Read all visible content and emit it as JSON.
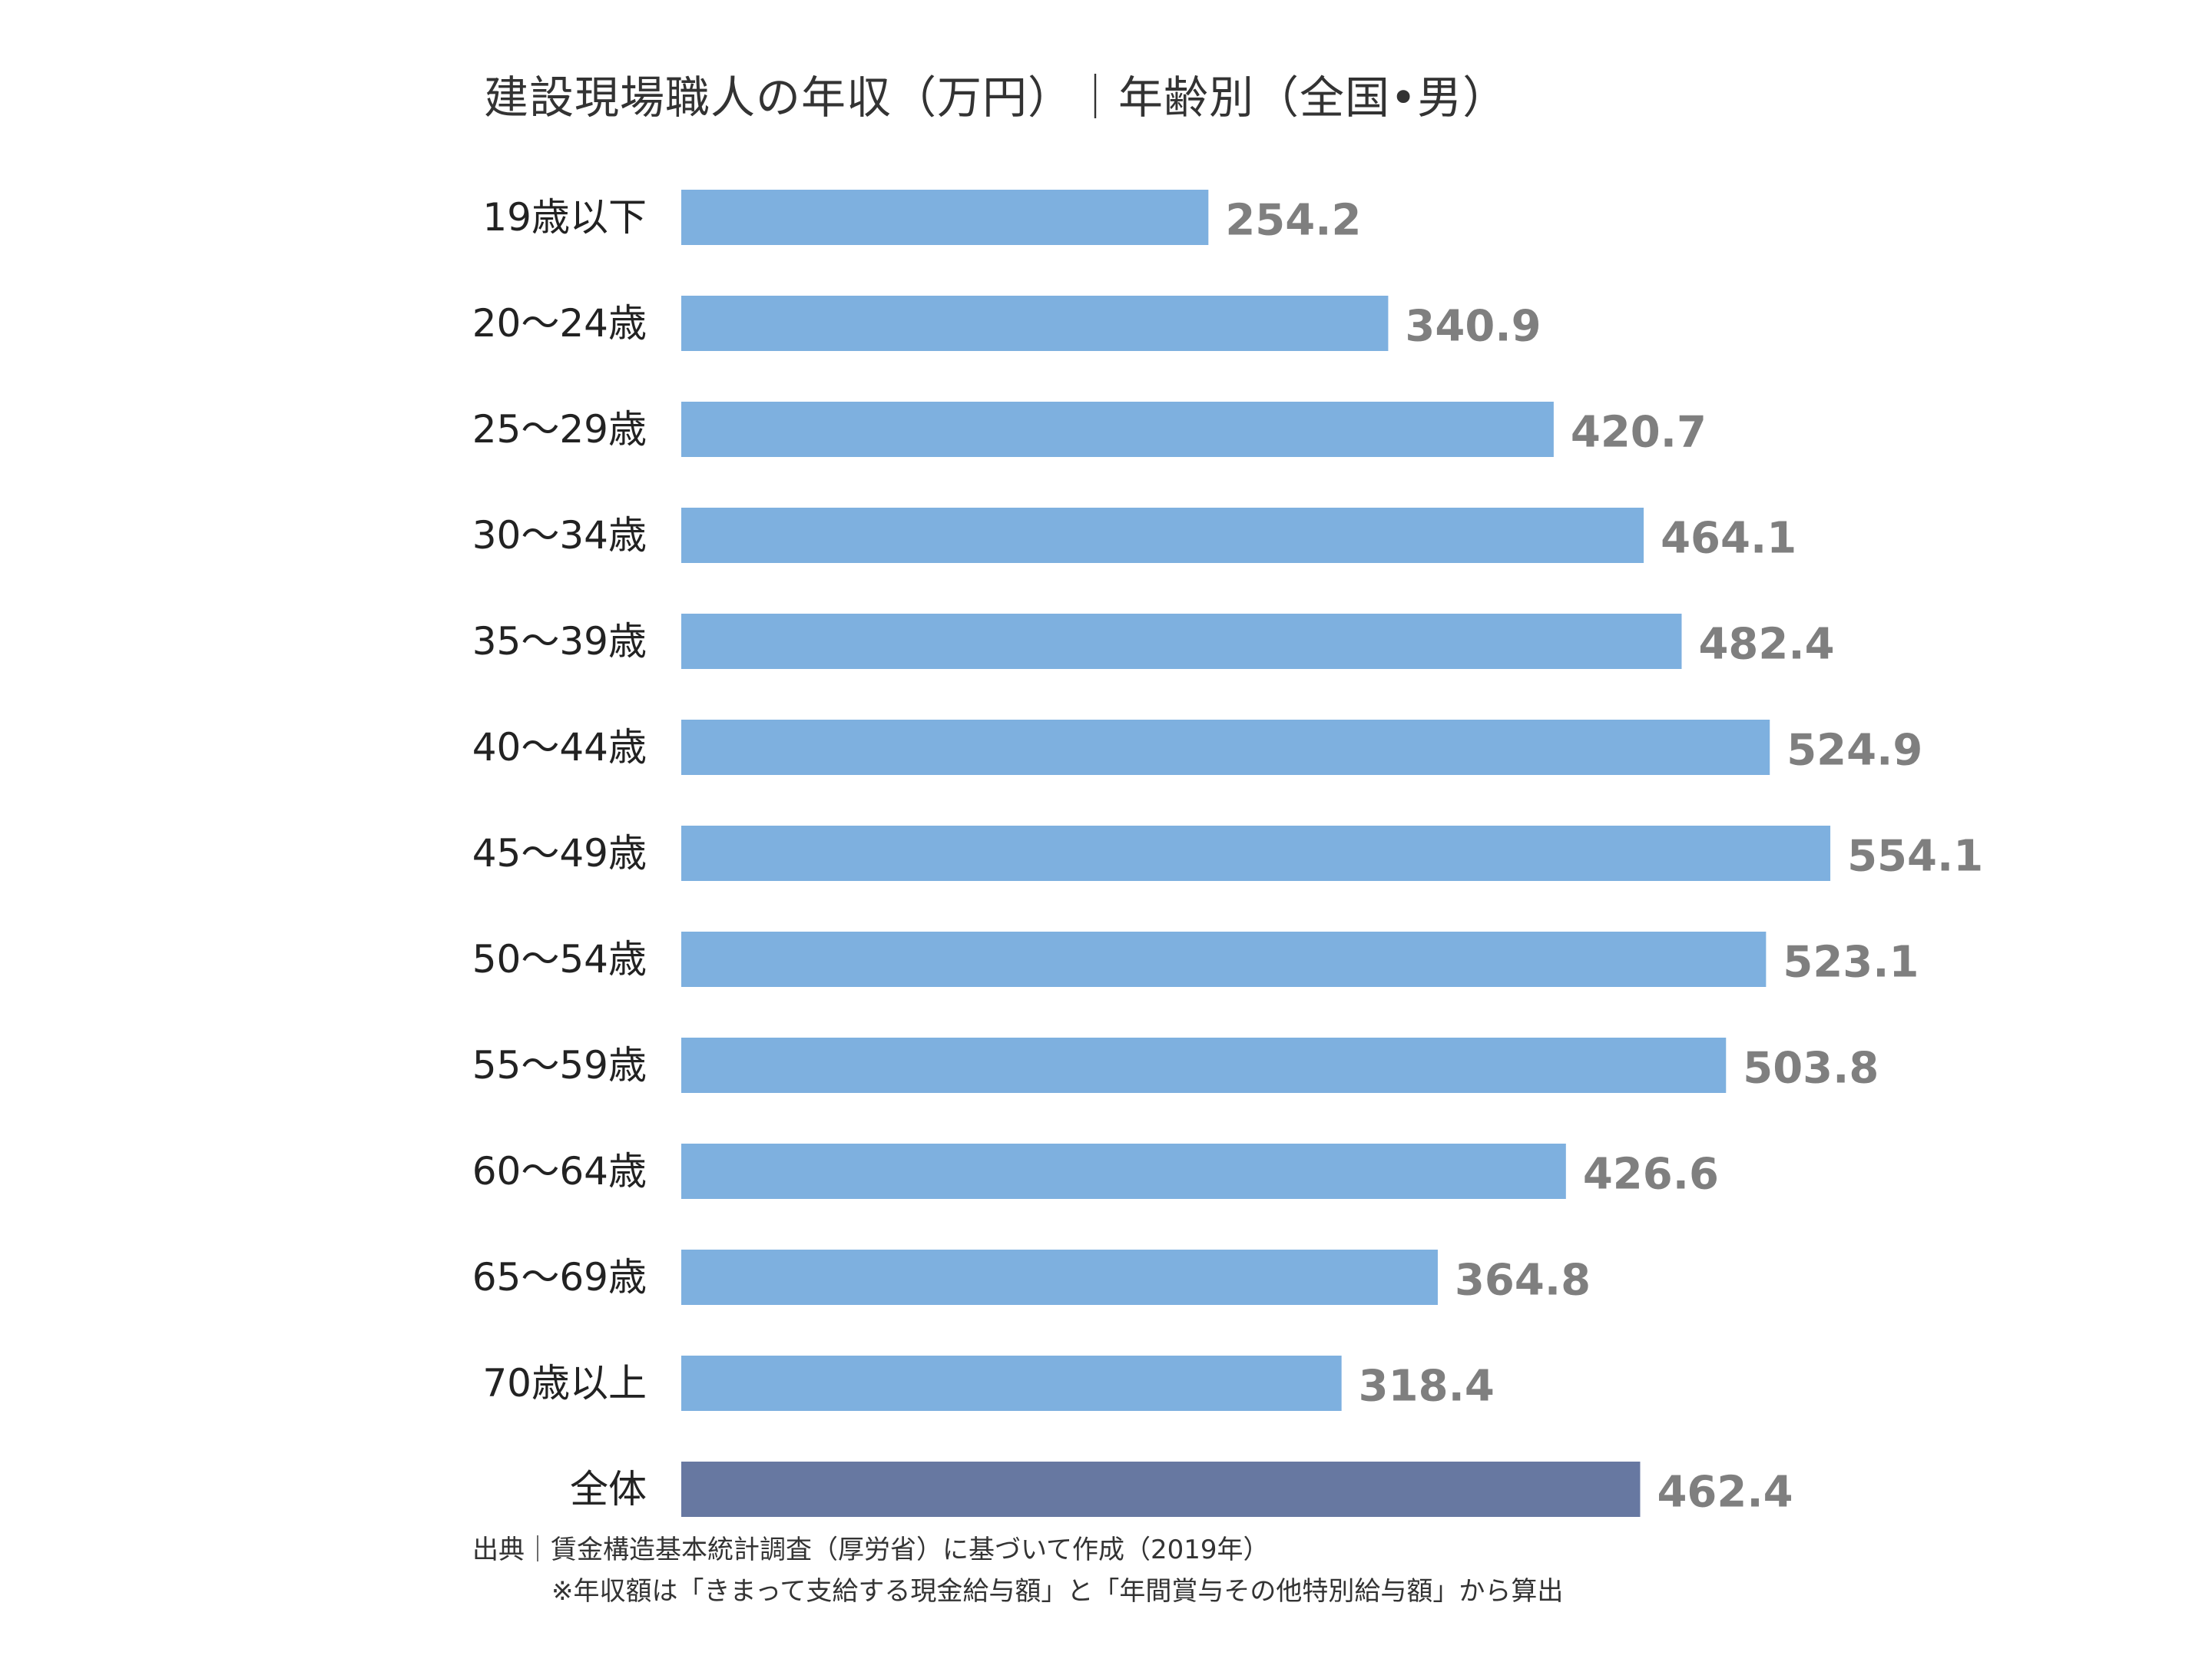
{
  "title": "建設現場職人の年収（万円）｜年齢別（全国•男）",
  "source": "出典｜賃金構造基本統計調査（厚労省）に基づいて作成（2019年）",
  "note": "※年収額は「きまって支給する現金給与額」と「年間賞与その他特別給与額」から算出",
  "colors": {
    "bar": "#7eb0df",
    "bar_total": "#6778a1",
    "value_text": "#7f7f7f",
    "label_text": "#222222"
  },
  "chart_data": {
    "type": "bar",
    "orientation": "horizontal",
    "title": "建設現場職人の年収（万円）｜年齢別（全国•男）",
    "categories": [
      "19歳以下",
      "20～24歳",
      "25～29歳",
      "30～34歳",
      "35～39歳",
      "40～44歳",
      "45～49歳",
      "50～54歳",
      "55～59歳",
      "60～64歳",
      "65～69歳",
      "70歳以上",
      "全体"
    ],
    "values": [
      254.2,
      340.9,
      420.7,
      464.1,
      482.4,
      524.9,
      554.1,
      523.1,
      503.8,
      426.6,
      364.8,
      318.4,
      462.4
    ],
    "value_labels": [
      "254.2",
      "340.9",
      "420.7",
      "464.1",
      "482.4",
      "524.9",
      "554.1",
      "523.1",
      "503.8",
      "426.6",
      "364.8",
      "318.4",
      "462.4"
    ],
    "highlight_category": "全体",
    "xlim": [
      0,
      600
    ],
    "grid": false,
    "legend": "none",
    "axes_visible": false
  }
}
